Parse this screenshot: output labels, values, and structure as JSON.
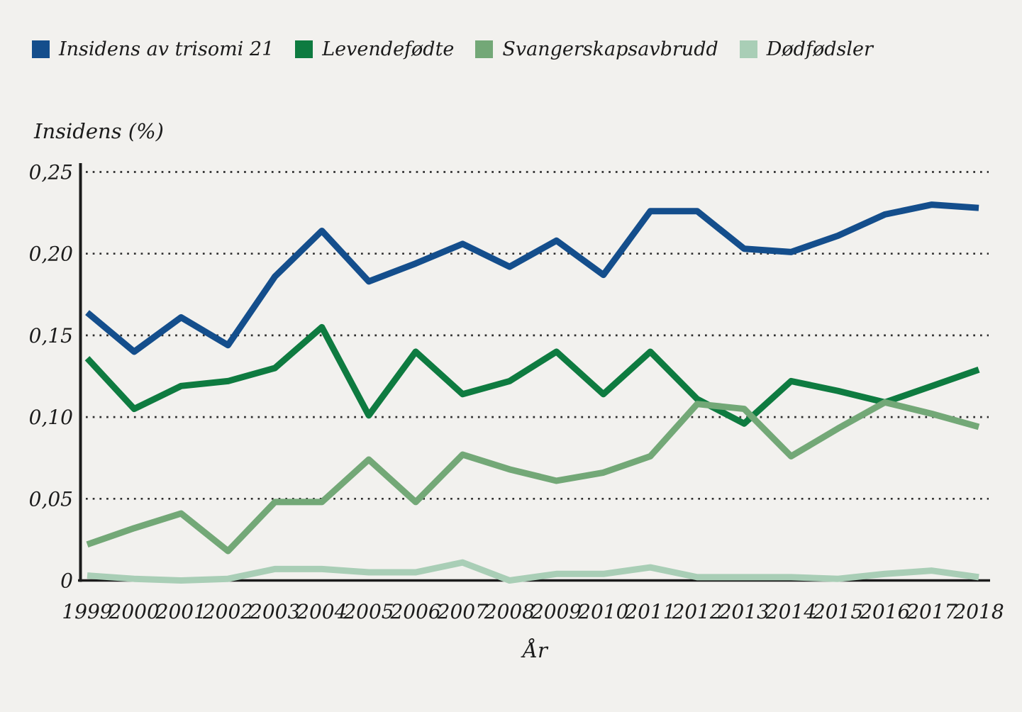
{
  "figure": {
    "background_color": "#f2f1ee",
    "text_color": "#1b1b1b"
  },
  "legend": {
    "items": [
      {
        "label": "Insidens av trisomi 21",
        "color": "#144e8c",
        "icon": "blue-square-swatch-icon"
      },
      {
        "label": "Levendefødte",
        "color": "#0e7b40",
        "icon": "dark-green-square-swatch-icon"
      },
      {
        "label": "Svangerskapsavbrudd",
        "color": "#73a877",
        "icon": "medium-green-square-swatch-icon"
      },
      {
        "label": "Dødfødsler",
        "color": "#a9ceb6",
        "icon": "light-green-square-swatch-icon"
      }
    ]
  },
  "chart_data": {
    "type": "line",
    "title": "",
    "ylabel": "Insidens (%)",
    "xlabel": "År",
    "grid": "horizontal-dotted",
    "legend_position": "top-left",
    "ylim": [
      0,
      0.25
    ],
    "yticks": {
      "values": [
        0,
        0.05,
        0.1,
        0.15,
        0.2,
        0.25
      ],
      "labels": [
        "0",
        "0,05",
        "0,10",
        "0,15",
        "0,20",
        "0,25"
      ]
    },
    "x": [
      1999,
      2000,
      2001,
      2002,
      2003,
      2004,
      2005,
      2006,
      2007,
      2008,
      2009,
      2010,
      2011,
      2012,
      2013,
      2014,
      2015,
      2016,
      2017,
      2018
    ],
    "series": [
      {
        "name": "Insidens av trisomi 21",
        "color": "#144e8c",
        "values": [
          0.164,
          0.14,
          0.161,
          0.144,
          0.186,
          0.214,
          0.183,
          0.194,
          0.206,
          0.192,
          0.208,
          0.187,
          0.226,
          0.226,
          0.203,
          0.201,
          0.211,
          0.224,
          0.23,
          0.228
        ]
      },
      {
        "name": "Levendefødte",
        "color": "#0e7b40",
        "values": [
          0.136,
          0.105,
          0.119,
          0.122,
          0.13,
          0.155,
          0.101,
          0.14,
          0.114,
          0.122,
          0.14,
          0.114,
          0.14,
          0.111,
          0.096,
          0.122,
          0.116,
          0.109,
          0.119,
          0.129
        ]
      },
      {
        "name": "Svangerskapsavbrudd",
        "color": "#73a877",
        "values": [
          0.022,
          0.032,
          0.041,
          0.018,
          0.048,
          0.048,
          0.074,
          0.048,
          0.077,
          0.068,
          0.061,
          0.066,
          0.076,
          0.108,
          0.105,
          0.076,
          0.093,
          0.109,
          0.102,
          0.094
        ]
      },
      {
        "name": "Dødfødsler",
        "color": "#a9ceb6",
        "values": [
          0.003,
          0.001,
          0.0,
          0.001,
          0.007,
          0.007,
          0.005,
          0.005,
          0.011,
          0.0,
          0.004,
          0.004,
          0.008,
          0.002,
          0.002,
          0.002,
          0.001,
          0.004,
          0.006,
          0.002
        ]
      }
    ]
  }
}
